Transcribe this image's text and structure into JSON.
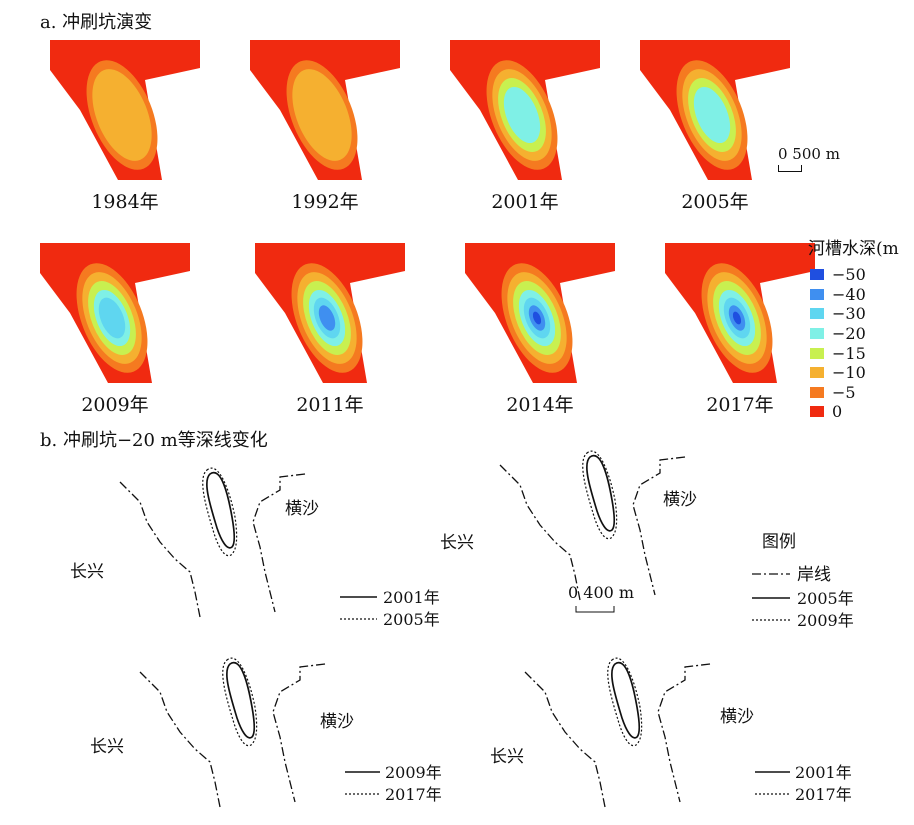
{
  "section_a": {
    "title": "a. 冲刷坑演变",
    "panels": [
      {
        "year": "1984年",
        "max_depth": -10
      },
      {
        "year": "1992年",
        "max_depth": -10
      },
      {
        "year": "2001年",
        "max_depth": -20
      },
      {
        "year": "2005年",
        "max_depth": -20
      },
      {
        "year": "2009年",
        "max_depth": -30
      },
      {
        "year": "2011年",
        "max_depth": -40
      },
      {
        "year": "2014年",
        "max_depth": -50
      },
      {
        "year": "2017年",
        "max_depth": -50
      }
    ],
    "scale": "0 500 m",
    "legend": {
      "title": "河槽水深(m",
      "items": [
        {
          "label": "−50",
          "color": "#1f4fe0"
        },
        {
          "label": "−40",
          "color": "#3f8ff0"
        },
        {
          "label": "−30",
          "color": "#5fd6f0"
        },
        {
          "label": "−20",
          "color": "#7ff0e6"
        },
        {
          "label": "−15",
          "color": "#c8f050"
        },
        {
          "label": "−10",
          "color": "#f5b030"
        },
        {
          "label": "−5",
          "color": "#f57a20"
        },
        {
          "label": "0",
          "color": "#f02a10"
        }
      ]
    }
  },
  "section_b": {
    "title": "b. 冲刷坑−20 m等深线变化",
    "place_left": "长兴",
    "place_right": "横沙",
    "scale": "0 400 m",
    "legend": {
      "title": "图例",
      "shoreline": "岸线",
      "solid": "2005年",
      "dotted": "2009年"
    },
    "subplots": [
      {
        "solid": "2001年",
        "dotted": "2005年"
      },
      {
        "solid": "2009年",
        "dotted": "2017年"
      },
      {
        "solid": "2001年",
        "dotted": "2017年"
      }
    ]
  }
}
